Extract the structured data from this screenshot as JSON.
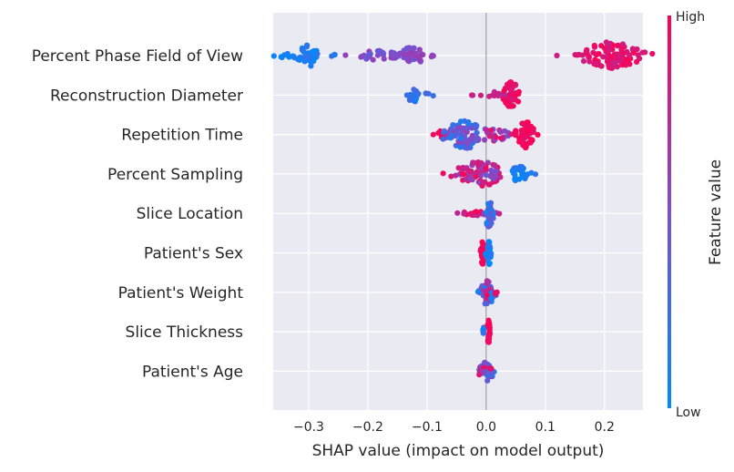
{
  "chart_data": {
    "type": "scatter",
    "subtype": "shap-beeswarm",
    "xlabel": "SHAP value (impact on model output)",
    "xlim": [
      -0.36,
      0.265
    ],
    "xticks": [
      {
        "value": -0.3,
        "label": "−0.3"
      },
      {
        "value": -0.2,
        "label": "−0.2"
      },
      {
        "value": -0.1,
        "label": "−0.1"
      },
      {
        "value": 0.0,
        "label": "0.0"
      },
      {
        "value": 0.1,
        "label": "0.1"
      },
      {
        "value": 0.2,
        "label": "0.2"
      }
    ],
    "grid": true,
    "colorbar": {
      "label": "Feature value",
      "high_label": "High",
      "low_label": "Low",
      "low_color": "#008afb",
      "mid_color": "#7a4fd0",
      "high_color": "#ff0052"
    },
    "features": [
      {
        "name": "Percent Phase Field of View",
        "clusters": [
          {
            "x": -0.33,
            "spread": 0.014,
            "n": 10,
            "fmin": 0.0,
            "fmax": 0.15,
            "width": 0.2
          },
          {
            "x": -0.3,
            "spread": 0.009,
            "n": 35,
            "fmin": 0.0,
            "fmax": 0.2,
            "width": 0.75
          },
          {
            "x": -0.255,
            "spread": 0.004,
            "n": 3,
            "fmin": 0.1,
            "fmax": 0.3,
            "width": 0.15
          },
          {
            "x": -0.18,
            "spread": 0.028,
            "n": 32,
            "fmin": 0.4,
            "fmax": 0.6,
            "width": 0.35
          },
          {
            "x": -0.125,
            "spread": 0.012,
            "n": 28,
            "fmin": 0.45,
            "fmax": 0.65,
            "width": 0.6
          },
          {
            "x": -0.09,
            "spread": 0.004,
            "n": 3,
            "fmin": 0.5,
            "fmax": 0.6,
            "width": 0.1
          },
          {
            "x": 0.21,
            "spread": 0.026,
            "n": 110,
            "fmin": 0.8,
            "fmax": 1.0,
            "width": 0.95
          }
        ]
      },
      {
        "name": "Reconstruction Diameter",
        "clusters": [
          {
            "x": -0.12,
            "spread": 0.011,
            "n": 18,
            "fmin": 0.05,
            "fmax": 0.3,
            "width": 0.45
          },
          {
            "x": -0.02,
            "spread": 0.003,
            "n": 2,
            "fmin": 0.75,
            "fmax": 0.85,
            "width": 0.05
          },
          {
            "x": 0.02,
            "spread": 0.01,
            "n": 12,
            "fmin": 0.65,
            "fmax": 0.85,
            "width": 0.25
          },
          {
            "x": 0.043,
            "spread": 0.007,
            "n": 40,
            "fmin": 0.85,
            "fmax": 1.0,
            "width": 0.95
          }
        ]
      },
      {
        "name": "Repetition Time",
        "clusters": [
          {
            "x": -0.07,
            "spread": 0.012,
            "n": 12,
            "fmin": 0.8,
            "fmax": 1.0,
            "width": 0.3
          },
          {
            "x": -0.035,
            "spread": 0.018,
            "n": 75,
            "fmin": 0.1,
            "fmax": 0.65,
            "width": 0.95
          },
          {
            "x": 0.015,
            "spread": 0.014,
            "n": 22,
            "fmin": 0.5,
            "fmax": 0.9,
            "width": 0.45
          },
          {
            "x": 0.047,
            "spread": 0.004,
            "n": 3,
            "fmin": 0.75,
            "fmax": 0.95,
            "width": 0.1
          },
          {
            "x": 0.068,
            "spread": 0.008,
            "n": 48,
            "fmin": 0.9,
            "fmax": 1.0,
            "width": 0.95
          }
        ]
      },
      {
        "name": "Percent Sampling",
        "clusters": [
          {
            "x": -0.01,
            "spread": 0.022,
            "n": 70,
            "fmin": 0.55,
            "fmax": 1.0,
            "width": 0.85
          },
          {
            "x": 0.012,
            "spread": 0.005,
            "n": 8,
            "fmin": 0.35,
            "fmax": 0.6,
            "width": 0.35
          },
          {
            "x": 0.055,
            "spread": 0.009,
            "n": 28,
            "fmin": 0.0,
            "fmax": 0.2,
            "width": 0.55
          }
        ]
      },
      {
        "name": "Slice Location",
        "clusters": [
          {
            "x": -0.02,
            "spread": 0.018,
            "n": 26,
            "fmin": 0.75,
            "fmax": 1.0,
            "width": 0.15
          },
          {
            "x": 0.005,
            "spread": 0.004,
            "n": 42,
            "fmin": 0.0,
            "fmax": 0.7,
            "width": 0.95
          }
        ]
      },
      {
        "name": "Patient's Sex",
        "clusters": [
          {
            "x": -0.006,
            "spread": 0.002,
            "n": 32,
            "fmin": 0.9,
            "fmax": 1.0,
            "width": 0.8
          },
          {
            "x": 0.005,
            "spread": 0.002,
            "n": 32,
            "fmin": 0.0,
            "fmax": 0.15,
            "width": 0.8
          }
        ]
      },
      {
        "name": "Patient's Weight",
        "clusters": [
          {
            "x": 0.002,
            "spread": 0.006,
            "n": 55,
            "fmin": 0.0,
            "fmax": 1.0,
            "width": 0.9
          },
          {
            "x": 0.016,
            "spread": 0.002,
            "n": 3,
            "fmin": 0.85,
            "fmax": 1.0,
            "width": 0.12
          }
        ]
      },
      {
        "name": "Slice Thickness",
        "clusters": [
          {
            "x": -0.005,
            "spread": 0.0015,
            "n": 8,
            "fmin": 0.0,
            "fmax": 0.4,
            "width": 0.35
          },
          {
            "x": 0.004,
            "spread": 0.001,
            "n": 30,
            "fmin": 0.9,
            "fmax": 1.0,
            "width": 0.85
          }
        ]
      },
      {
        "name": "Patient's Age",
        "clusters": [
          {
            "x": 0.0,
            "spread": 0.006,
            "n": 45,
            "fmin": 0.0,
            "fmax": 1.0,
            "width": 0.75
          }
        ]
      }
    ]
  }
}
